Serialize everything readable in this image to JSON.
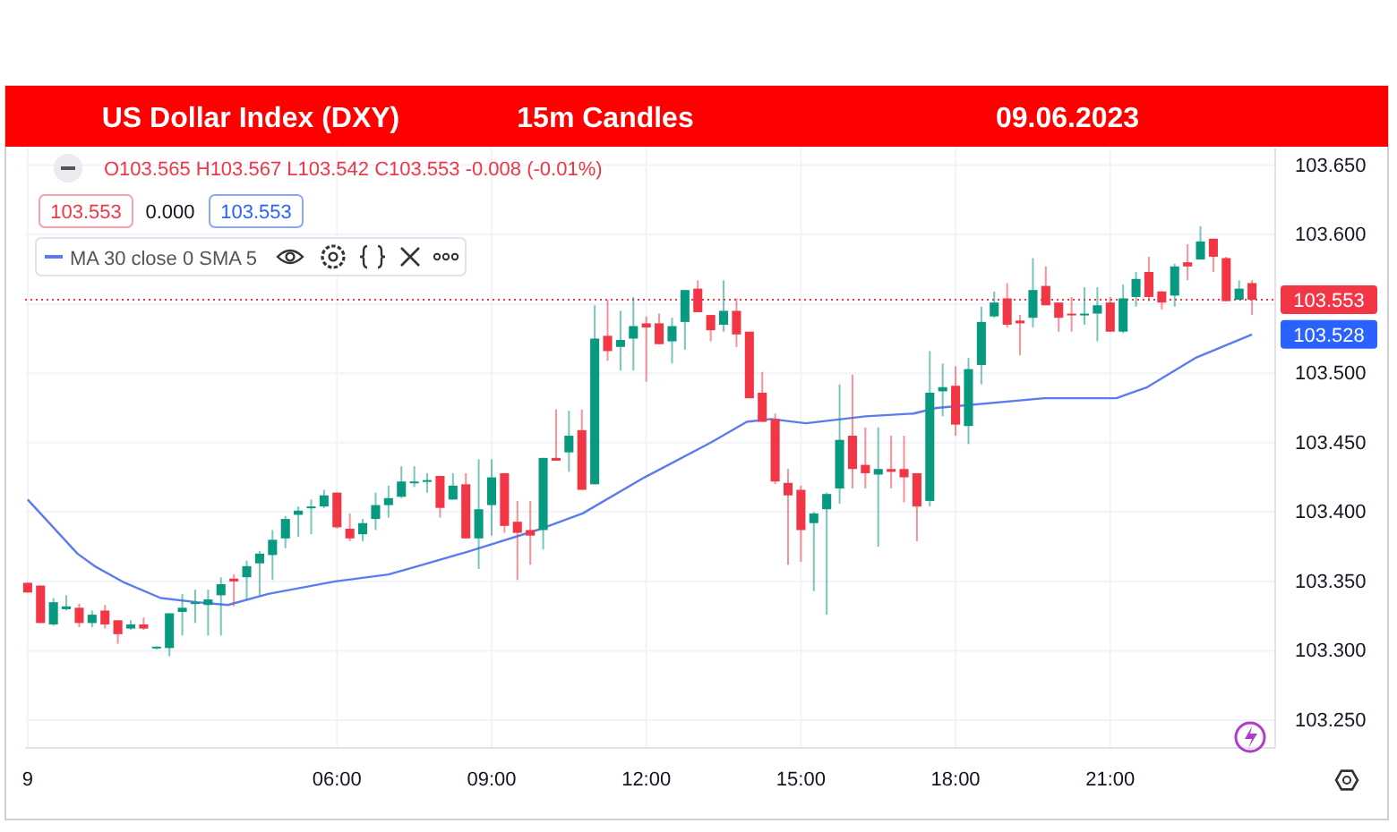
{
  "chart_data": {
    "type": "candlestick",
    "title": "US Dollar Index (DXY)",
    "subtitle": "15m Candles",
    "annotations": [
      "09.06.2023",
      "O103.565 H103.567 L103.542 C103.553 -0.008 (-0.01%)",
      "103.553",
      "0.000",
      "103.553",
      "103.528"
    ],
    "x": [
      "2023-06-09T00:00",
      "2023-06-09T00:15",
      "2023-06-09T00:30",
      "2023-06-09T00:45",
      "2023-06-09T01:00",
      "2023-06-09T01:15",
      "2023-06-09T01:30",
      "2023-06-09T01:45",
      "2023-06-09T02:00",
      "2023-06-09T02:15",
      "2023-06-09T02:30",
      "2023-06-09T02:45",
      "2023-06-09T03:00",
      "2023-06-09T03:15",
      "2023-06-09T03:30",
      "2023-06-09T03:45",
      "2023-06-09T04:00",
      "2023-06-09T04:15",
      "2023-06-09T04:30",
      "2023-06-09T04:45",
      "2023-06-09T05:00",
      "2023-06-09T05:15",
      "2023-06-09T05:30",
      "2023-06-09T05:45",
      "2023-06-09T06:00",
      "2023-06-09T06:15",
      "2023-06-09T06:30",
      "2023-06-09T06:45",
      "2023-06-09T07:00",
      "2023-06-09T07:15",
      "2023-06-09T07:30",
      "2023-06-09T07:45",
      "2023-06-09T08:00",
      "2023-06-09T08:15",
      "2023-06-09T08:30",
      "2023-06-09T08:45",
      "2023-06-09T09:00",
      "2023-06-09T09:15",
      "2023-06-09T09:30",
      "2023-06-09T09:45",
      "2023-06-09T10:00",
      "2023-06-09T10:15",
      "2023-06-09T10:30",
      "2023-06-09T10:45",
      "2023-06-09T11:00",
      "2023-06-09T11:15",
      "2023-06-09T11:30",
      "2023-06-09T11:45",
      "2023-06-09T12:00",
      "2023-06-09T12:15",
      "2023-06-09T12:30",
      "2023-06-09T12:45",
      "2023-06-09T13:00",
      "2023-06-09T13:15",
      "2023-06-09T13:30",
      "2023-06-09T13:45",
      "2023-06-09T14:00",
      "2023-06-09T14:15",
      "2023-06-09T14:30",
      "2023-06-09T14:45",
      "2023-06-09T15:00",
      "2023-06-09T15:15",
      "2023-06-09T15:30",
      "2023-06-09T15:45",
      "2023-06-09T16:00",
      "2023-06-09T16:15",
      "2023-06-09T16:30",
      "2023-06-09T16:45",
      "2023-06-09T17:00",
      "2023-06-09T17:15",
      "2023-06-09T17:30",
      "2023-06-09T17:45",
      "2023-06-09T18:00",
      "2023-06-09T18:15",
      "2023-06-09T18:30",
      "2023-06-09T18:45",
      "2023-06-09T19:00",
      "2023-06-09T19:15",
      "2023-06-09T19:30",
      "2023-06-09T19:45",
      "2023-06-09T20:00",
      "2023-06-09T20:15",
      "2023-06-09T20:30",
      "2023-06-09T20:45",
      "2023-06-09T21:00",
      "2023-06-09T21:15",
      "2023-06-09T21:30",
      "2023-06-09T21:45",
      "2023-06-09T22:00",
      "2023-06-09T22:15",
      "2023-06-09T22:30",
      "2023-06-09T22:45",
      "2023-06-09T23:00",
      "2023-06-09T23:15",
      "2023-06-09T23:30",
      "2023-06-09T23:45"
    ],
    "ohlc": [
      [
        103.349,
        103.349,
        103.342,
        103.342
      ],
      [
        103.347,
        103.347,
        103.32,
        103.32
      ],
      [
        103.319,
        103.338,
        103.318,
        103.335
      ],
      [
        103.33,
        103.34,
        103.329,
        103.332
      ],
      [
        103.331,
        103.334,
        103.317,
        103.32
      ],
      [
        103.32,
        103.329,
        103.317,
        103.326
      ],
      [
        103.329,
        103.333,
        103.316,
        103.319
      ],
      [
        103.322,
        103.322,
        103.305,
        103.312
      ],
      [
        103.316,
        103.322,
        103.315,
        103.319
      ],
      [
        103.319,
        103.324,
        103.315,
        103.316
      ],
      [
        103.302,
        103.303,
        103.301,
        103.303
      ],
      [
        103.302,
        103.327,
        103.296,
        103.327
      ],
      [
        103.328,
        103.341,
        103.311,
        103.331
      ],
      [
        103.334,
        103.344,
        103.32,
        103.335
      ],
      [
        103.333,
        103.344,
        103.311,
        103.337
      ],
      [
        103.34,
        103.353,
        103.311,
        103.348
      ],
      [
        103.352,
        103.355,
        103.332,
        103.35
      ],
      [
        103.353,
        103.365,
        103.337,
        103.361
      ],
      [
        103.363,
        103.372,
        103.34,
        103.37
      ],
      [
        103.369,
        103.387,
        103.351,
        103.38
      ],
      [
        103.381,
        103.397,
        103.374,
        103.395
      ],
      [
        103.398,
        103.404,
        103.382,
        103.401
      ],
      [
        103.403,
        103.409,
        103.384,
        103.404
      ],
      [
        103.404,
        103.416,
        103.403,
        103.412
      ],
      [
        103.414,
        103.414,
        103.388,
        103.389
      ],
      [
        103.388,
        103.399,
        103.379,
        103.381
      ],
      [
        103.384,
        103.395,
        103.379,
        103.392
      ],
      [
        103.395,
        103.414,
        103.387,
        103.405
      ],
      [
        103.405,
        103.419,
        103.396,
        103.41
      ],
      [
        103.411,
        103.433,
        103.41,
        103.422
      ],
      [
        103.421,
        103.433,
        103.418,
        103.422
      ],
      [
        103.422,
        103.428,
        103.414,
        103.423
      ],
      [
        103.426,
        103.426,
        103.396,
        103.403
      ],
      [
        103.409,
        103.428,
        103.409,
        103.419
      ],
      [
        103.42,
        103.428,
        103.381,
        103.381
      ],
      [
        103.381,
        103.438,
        103.359,
        103.402
      ],
      [
        103.405,
        103.438,
        103.383,
        103.425
      ],
      [
        103.428,
        103.428,
        103.385,
        103.39
      ],
      [
        103.393,
        103.408,
        103.351,
        103.385
      ],
      [
        103.387,
        103.408,
        103.362,
        103.383
      ],
      [
        103.387,
        103.439,
        103.373,
        103.439
      ],
      [
        103.439,
        103.474,
        103.437,
        103.437
      ],
      [
        103.443,
        103.473,
        103.429,
        103.455
      ],
      [
        103.459,
        103.474,
        103.416,
        103.416
      ],
      [
        103.42,
        103.549,
        103.42,
        103.525
      ],
      [
        103.527,
        103.553,
        103.509,
        103.516
      ],
      [
        103.519,
        103.545,
        103.502,
        103.524
      ],
      [
        103.525,
        103.555,
        103.502,
        103.534
      ],
      [
        103.536,
        103.541,
        103.494,
        103.533
      ],
      [
        103.536,
        103.543,
        103.521,
        103.521
      ],
      [
        103.523,
        103.54,
        103.507,
        103.534
      ],
      [
        103.537,
        103.56,
        103.517,
        103.56
      ],
      [
        103.561,
        103.567,
        103.544,
        103.544
      ],
      [
        103.542,
        103.542,
        103.523,
        103.531
      ],
      [
        103.535,
        103.567,
        103.53,
        103.545
      ],
      [
        103.545,
        103.554,
        103.519,
        103.528
      ],
      [
        103.53,
        103.53,
        103.482,
        103.482
      ],
      [
        103.486,
        103.501,
        103.465,
        103.465
      ],
      [
        103.467,
        103.471,
        103.42,
        103.422
      ],
      [
        103.421,
        103.431,
        103.362,
        103.412
      ],
      [
        103.416,
        103.419,
        103.364,
        103.387
      ],
      [
        103.392,
        103.4,
        103.343,
        103.399
      ],
      [
        103.402,
        103.414,
        103.326,
        103.413
      ],
      [
        103.417,
        103.492,
        103.406,
        103.452
      ],
      [
        103.455,
        103.499,
        103.417,
        103.431
      ],
      [
        103.434,
        103.461,
        103.417,
        103.428
      ],
      [
        103.427,
        103.461,
        103.375,
        103.431
      ],
      [
        103.431,
        103.455,
        103.417,
        103.429
      ],
      [
        103.431,
        103.455,
        103.407,
        103.425
      ],
      [
        103.428,
        103.428,
        103.379,
        103.404
      ],
      [
        103.408,
        103.516,
        103.404,
        103.486
      ],
      [
        103.487,
        103.507,
        103.469,
        103.49
      ],
      [
        103.491,
        103.505,
        103.455,
        103.463
      ],
      [
        103.462,
        103.511,
        103.449,
        103.503
      ],
      [
        103.506,
        103.548,
        103.492,
        103.537
      ],
      [
        103.541,
        103.559,
        103.54,
        103.551
      ],
      [
        103.554,
        103.565,
        103.533,
        103.535
      ],
      [
        103.538,
        103.542,
        103.513,
        103.536
      ],
      [
        103.54,
        103.583,
        103.533,
        103.56
      ],
      [
        103.563,
        103.577,
        103.549,
        103.549
      ],
      [
        103.551,
        103.551,
        103.53,
        103.54
      ],
      [
        103.543,
        103.555,
        103.53,
        103.542
      ],
      [
        103.542,
        103.562,
        103.535,
        103.543
      ],
      [
        103.543,
        103.562,
        103.523,
        103.549
      ],
      [
        103.551,
        103.555,
        103.53,
        103.53
      ],
      [
        103.53,
        103.564,
        103.529,
        103.554
      ],
      [
        103.555,
        103.573,
        103.548,
        103.568
      ],
      [
        103.573,
        103.584,
        103.552,
        103.555
      ],
      [
        103.559,
        103.559,
        103.546,
        103.551
      ],
      [
        103.556,
        103.579,
        103.548,
        103.577
      ],
      [
        103.58,
        103.593,
        103.567,
        103.577
      ],
      [
        103.582,
        103.606,
        103.582,
        103.595
      ],
      [
        103.597,
        103.597,
        103.573,
        103.584
      ],
      [
        103.583,
        103.584,
        103.552,
        103.552
      ],
      [
        103.553,
        103.567,
        103.553,
        103.561
      ],
      [
        103.565,
        103.567,
        103.542,
        103.553
      ]
    ],
    "series": [
      {
        "type": "line",
        "name": "MA 30 close 0 SMA 5",
        "color": "#5b7cf0",
        "x": [
          "2023-06-09T00:00",
          "2023-06-09T00:58",
          "2023-06-09T01:18",
          "2023-06-09T01:53",
          "2023-06-09T02:35",
          "2023-06-09T03:17",
          "2023-06-09T03:53",
          "2023-06-09T04:40",
          "2023-06-09T05:58",
          "2023-06-09T07:00",
          "2023-06-09T07:34",
          "2023-06-09T08:30",
          "2023-06-09T09:53",
          "2023-06-09T10:46",
          "2023-06-09T11:58",
          "2023-06-09T13:15",
          "2023-06-09T13:57",
          "2023-06-09T14:25",
          "2023-06-09T15:06",
          "2023-06-09T16:15",
          "2023-06-09T17:11",
          "2023-06-09T17:38",
          "2023-06-09T19:43",
          "2023-06-09T21:07",
          "2023-06-09T21:43",
          "2023-06-09T22:39",
          "2023-06-09T23:45"
        ],
        "values": [
          103.409,
          103.37,
          103.361,
          103.349,
          103.338,
          103.335,
          103.333,
          103.341,
          103.35,
          103.355,
          103.361,
          103.371,
          103.387,
          103.399,
          103.425,
          103.45,
          103.465,
          103.467,
          103.464,
          103.469,
          103.471,
          103.475,
          103.482,
          103.482,
          103.49,
          103.511,
          103.528
        ]
      }
    ],
    "ref_lines": [
      {
        "axis": "y",
        "value": 103.553,
        "label": "103.553",
        "color": "#f23645",
        "line_style": "dotted"
      }
    ],
    "xlim": [
      "2023-06-08T23:57",
      "2023-06-10T00:12"
    ],
    "xticks": [
      {
        "value": "2023-06-09T00:00",
        "label": "9"
      },
      {
        "value": "2023-06-09T06:00",
        "label": "06:00"
      },
      {
        "value": "2023-06-09T09:00",
        "label": "09:00"
      },
      {
        "value": "2023-06-09T12:00",
        "label": "12:00"
      },
      {
        "value": "2023-06-09T15:00",
        "label": "15:00"
      },
      {
        "value": "2023-06-09T18:00",
        "label": "18:00"
      },
      {
        "value": "2023-06-09T21:00",
        "label": "21:00"
      }
    ],
    "ylim": [
      103.23,
      103.662
    ],
    "yticks": [
      {
        "value": 103.25,
        "label": "103.250"
      },
      {
        "value": 103.3,
        "label": "103.300"
      },
      {
        "value": 103.35,
        "label": "103.350"
      },
      {
        "value": 103.4,
        "label": "103.400"
      },
      {
        "value": 103.45,
        "label": "103.450"
      },
      {
        "value": 103.5,
        "label": "103.500"
      },
      {
        "value": 103.55,
        "label": null
      },
      {
        "value": 103.6,
        "label": "103.600"
      },
      {
        "value": 103.65,
        "label": "103.650"
      }
    ],
    "grid": true,
    "legend": "top left"
  }
}
